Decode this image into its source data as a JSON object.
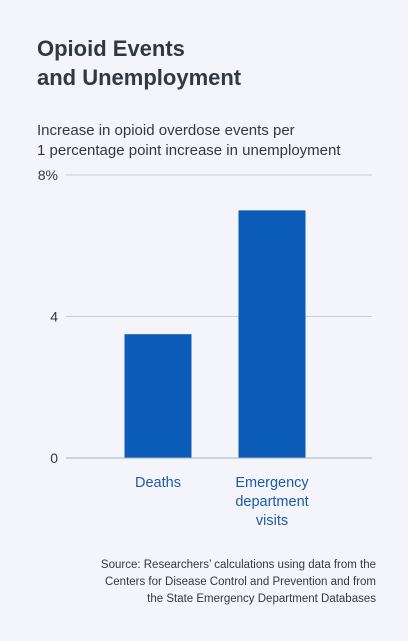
{
  "chart_data": {
    "type": "bar",
    "title_lines": [
      "Opioid Events",
      "and Unemployment"
    ],
    "subtitle_lines": [
      "Increase in opioid overdose events per",
      "1 percentage point increase in unemployment"
    ],
    "categories": [
      {
        "lines": [
          "Deaths"
        ]
      },
      {
        "lines": [
          "Emergency",
          "department",
          "visits"
        ]
      }
    ],
    "values": [
      3.5,
      7.0
    ],
    "ylim": [
      0,
      8
    ],
    "yticks": [
      {
        "value": 0,
        "label": "0"
      },
      {
        "value": 4,
        "label": "4"
      },
      {
        "value": 8,
        "label": "8%"
      }
    ],
    "grid": true,
    "colors": {
      "bar": "#0b5cb8",
      "grid": "#c8ccd4",
      "category_label": "#1d5aa8",
      "text": "#333840"
    }
  },
  "source_lines": [
    "Source: Researchers’ calculations using data from the",
    "Centers for Disease Control and Prevention and from",
    "the State Emergency Department Databases"
  ]
}
